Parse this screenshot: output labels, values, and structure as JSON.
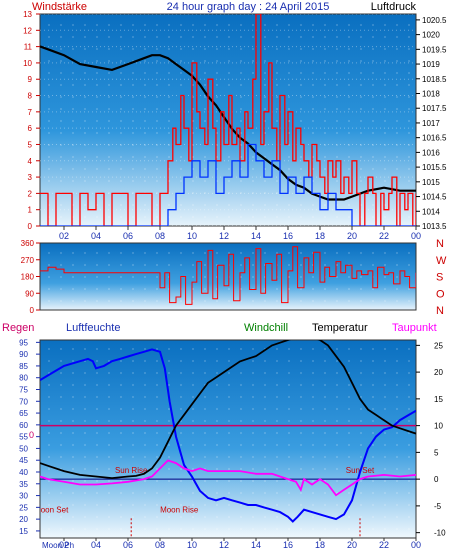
{
  "colors": {
    "wind_speed": "#ff0000",
    "wind_gust": "#ff0000",
    "wind_avg": "#0033ff",
    "pressure": "#000000",
    "direction": "#ff0000",
    "humidity": "#0000ff",
    "temperature": "#000000",
    "dewpoint": "#ff00ff",
    "windchill": "#008000",
    "rain": "#ff0000",
    "zero_line": "#cc0066",
    "freeze_line": "#000080",
    "night_shade": "#ffffff",
    "marker": "#cc0000"
  },
  "chart_data": [
    {
      "type": "line",
      "title": "24 hour graph day : 24 April 2015",
      "left_label": "Windstärke",
      "right_label": "Luftdruck",
      "left_ticks": [
        "0",
        "1",
        "2",
        "3",
        "4",
        "5",
        "6",
        "7",
        "8",
        "9",
        "10",
        "11",
        "12",
        "13"
      ],
      "right_ticks": [
        "1013.5",
        "1014",
        "1014.5",
        "1015",
        "1015.5",
        "1016",
        "1016.5",
        "1017",
        "1017.5",
        "1018",
        "1018.5",
        "1019",
        "1019.5",
        "1020",
        "1020.5"
      ],
      "x_ticks": [
        "02",
        "04",
        "06",
        "08",
        "10",
        "12",
        "14",
        "16",
        "18",
        "20",
        "22",
        "00"
      ],
      "ylim_left": [
        0,
        13
      ],
      "ylim_right": [
        1013.5,
        1020.7
      ],
      "xlim": [
        0.5,
        24
      ],
      "series": [
        {
          "key": "pressure",
          "axis": "right",
          "x": [
            0.5,
            1,
            2,
            3,
            4,
            5,
            6,
            7,
            7.5,
            8,
            8.5,
            9,
            9.5,
            10,
            10.5,
            11,
            11.5,
            12,
            12.5,
            13,
            13.5,
            14,
            14.5,
            15,
            15.5,
            16,
            16.5,
            17,
            17.5,
            18,
            18.5,
            19,
            19.5,
            20,
            20.5,
            21,
            22,
            23,
            24
          ],
          "values": [
            1019.6,
            1019.5,
            1019.3,
            1019.0,
            1018.9,
            1018.8,
            1019.0,
            1019.2,
            1019.3,
            1019.3,
            1019.2,
            1019.0,
            1018.8,
            1018.6,
            1018.3,
            1017.9,
            1017.6,
            1017.2,
            1016.8,
            1016.5,
            1016.3,
            1016.0,
            1015.8,
            1015.6,
            1015.4,
            1015.1,
            1014.9,
            1014.8,
            1014.6,
            1014.5,
            1014.4,
            1014.4,
            1014.4,
            1014.5,
            1014.6,
            1014.7,
            1014.8,
            1014.7,
            1014.7
          ]
        },
        {
          "key": "wind_gust",
          "axis": "left",
          "x": [
            0.5,
            1,
            1.5,
            2,
            2.5,
            3,
            3.5,
            4,
            4.5,
            5,
            5.5,
            6,
            6.5,
            7,
            7.5,
            8,
            8.3,
            8.5,
            8.8,
            9,
            9.3,
            9.5,
            9.8,
            10,
            10.3,
            10.5,
            10.8,
            11,
            11.3,
            11.5,
            11.8,
            12,
            12.3,
            12.5,
            12.8,
            13,
            13.3,
            13.5,
            13.8,
            14,
            14.3,
            14.5,
            14.8,
            15,
            15.3,
            15.5,
            15.8,
            16,
            16.3,
            16.5,
            16.8,
            17,
            17.3,
            17.5,
            17.8,
            18,
            18.3,
            18.5,
            18.8,
            19,
            19.3,
            19.5,
            19.8,
            20,
            20.3,
            20.5,
            20.8,
            21,
            21.3,
            21.5,
            21.8,
            22,
            22.3,
            22.5,
            22.8,
            23,
            23.3,
            23.5,
            23.8,
            24
          ],
          "values": [
            2,
            0,
            2,
            2,
            0,
            2,
            1,
            2,
            0,
            2,
            2,
            0,
            2,
            2,
            0,
            2,
            2,
            4,
            6,
            5,
            8,
            6,
            4,
            10,
            7,
            6,
            5,
            9,
            6,
            4,
            7,
            5,
            8,
            5,
            6,
            4,
            7,
            6,
            9,
            13,
            5,
            7,
            10,
            6,
            4,
            8,
            5,
            7,
            4,
            6,
            5,
            4,
            3,
            5,
            4,
            3,
            2,
            4,
            3,
            4,
            2,
            3,
            2,
            4,
            2,
            0,
            2,
            3,
            2,
            0,
            2,
            1,
            2,
            3,
            0,
            2,
            1,
            2,
            0,
            2
          ]
        },
        {
          "key": "wind_avg",
          "axis": "left",
          "x": [
            0.5,
            2,
            4,
            6,
            8,
            8.5,
            9,
            9.5,
            10,
            10.5,
            11,
            11.5,
            12,
            12.5,
            13,
            13.5,
            14,
            14.5,
            15,
            15.5,
            16,
            16.5,
            17,
            17.5,
            18,
            18.5,
            19,
            19.5,
            20,
            21,
            22,
            23,
            24
          ],
          "values": [
            0,
            0,
            0,
            0,
            0,
            1,
            2,
            3,
            4,
            3,
            4,
            2,
            3,
            4,
            3,
            5,
            4,
            3,
            4,
            2,
            3,
            2,
            3,
            2,
            1,
            2,
            1,
            1,
            0,
            0,
            0,
            0,
            0
          ]
        }
      ]
    },
    {
      "type": "scatter",
      "y_ticks": [
        "360",
        "270",
        "180",
        "90",
        "0"
      ],
      "compass": [
        "N",
        "W",
        "S",
        "O",
        "N"
      ],
      "ylim": [
        0,
        360
      ],
      "xlim": [
        0.5,
        24
      ],
      "series": [
        {
          "key": "direction",
          "x": [
            0.5,
            1,
            1.5,
            2,
            3,
            4,
            5,
            6,
            7,
            7.5,
            8,
            8.3,
            8.6,
            9,
            9.3,
            9.6,
            10,
            10.3,
            10.6,
            11,
            11.3,
            11.6,
            12,
            12.3,
            12.6,
            13,
            13.3,
            13.6,
            14,
            14.3,
            14.6,
            15,
            15.3,
            15.6,
            16,
            16.3,
            16.6,
            17,
            17.3,
            17.6,
            18,
            18.3,
            18.6,
            19,
            19.3,
            19.6,
            20,
            20.3,
            20.6,
            21,
            21.3,
            21.6,
            22,
            22.3,
            22.6,
            23,
            23.3,
            23.6,
            24
          ],
          "values": [
            210,
            230,
            220,
            200,
            200,
            200,
            200,
            200,
            200,
            200,
            120,
            200,
            40,
            70,
            180,
            30,
            150,
            260,
            90,
            320,
            60,
            240,
            130,
            300,
            50,
            200,
            280,
            110,
            330,
            90,
            250,
            160,
            300,
            40,
            210,
            340,
            120,
            280,
            200,
            310,
            150,
            230,
            180,
            260,
            200,
            240,
            170,
            210,
            190,
            210,
            120,
            230,
            190,
            200,
            140,
            210,
            180,
            120,
            200
          ]
        }
      ]
    },
    {
      "type": "line",
      "left_label": "Regen",
      "humidity_label": "Luftfeuchte",
      "windchill_label": "Windchill",
      "temperature_label": "Temperatur",
      "dewpoint_label": "Taupunkt",
      "zero_label": "0",
      "left_ticks": [
        "15",
        "20",
        "25",
        "30",
        "35",
        "40",
        "45",
        "50",
        "55",
        "60",
        "65",
        "70",
        "75",
        "80",
        "85",
        "90",
        "95"
      ],
      "right_ticks": [
        "-10",
        "-5",
        "0",
        "5",
        "10",
        "15",
        "20",
        "25"
      ],
      "x_ticks": [
        "02",
        "04",
        "06",
        "08",
        "10",
        "12",
        "14",
        "16",
        "18",
        "20",
        "22",
        "00"
      ],
      "ylim_left": [
        12,
        96
      ],
      "ylim_right": [
        -11,
        26
      ],
      "xlim": [
        0.5,
        24
      ],
      "sun_rise": {
        "label": "Sun Rise",
        "x": 6.2
      },
      "sun_set": {
        "label": "Sun Set",
        "x": 20.5
      },
      "moon_set": {
        "label": "Moon Set",
        "x": 1.2
      },
      "moon_rise": {
        "label": "Moon Rise",
        "x": 9.2
      },
      "moon_phase": {
        "label": "Moon Ph",
        "x": 0.7
      },
      "series": [
        {
          "key": "humidity",
          "axis": "left",
          "x": [
            0.5,
            1,
            1.5,
            2,
            2.5,
            3,
            3.5,
            3.8,
            4,
            4.5,
            5,
            5.5,
            6,
            6.5,
            7,
            7.5,
            8,
            8.3,
            8.6,
            9,
            9.5,
            10,
            10.5,
            11,
            11.5,
            12,
            12.5,
            13,
            13.5,
            14,
            14.5,
            15,
            15.5,
            16,
            16.3,
            16.6,
            17,
            17.5,
            18,
            18.5,
            19,
            19.5,
            20,
            20.5,
            21,
            21.5,
            22,
            22.5,
            23,
            23.5,
            24
          ],
          "values": [
            79,
            81,
            83,
            85,
            86,
            87,
            88,
            87,
            84,
            85,
            87,
            88,
            89,
            90,
            91,
            92,
            91,
            84,
            70,
            55,
            43,
            38,
            32,
            29,
            28,
            29,
            28,
            27,
            26,
            26,
            25,
            24,
            23,
            21,
            19,
            21,
            24,
            23,
            22,
            21,
            20,
            22,
            28,
            40,
            50,
            55,
            58,
            59,
            62,
            64,
            66
          ]
        },
        {
          "key": "temperature",
          "axis": "right",
          "x": [
            0.5,
            1,
            2,
            3,
            4,
            5,
            6,
            6.5,
            7,
            7.5,
            8,
            8.5,
            9,
            9.5,
            10,
            10.5,
            11,
            11.5,
            12,
            12.5,
            13,
            13.5,
            14,
            14.5,
            15,
            15.5,
            16,
            16.5,
            17,
            17.5,
            18,
            18.5,
            19,
            19.5,
            20,
            20.5,
            21,
            21.5,
            22,
            22.5,
            23,
            23.5,
            24
          ],
          "values": [
            3,
            2.5,
            1.5,
            0.8,
            0.5,
            0.2,
            0.5,
            0.6,
            1,
            2,
            4,
            7,
            10,
            12,
            14,
            16,
            18,
            19,
            20,
            21,
            22,
            22.5,
            23,
            24,
            25,
            25.5,
            26,
            26.5,
            26.5,
            26.5,
            26,
            25,
            23,
            21,
            18,
            15,
            13,
            12,
            11,
            10,
            9.5,
            9,
            8.5
          ]
        },
        {
          "key": "dewpoint",
          "axis": "right",
          "x": [
            0.5,
            1,
            2,
            3,
            4,
            5,
            6,
            7,
            7.5,
            8,
            8.5,
            9,
            9.5,
            10,
            10.5,
            11,
            12,
            13,
            14,
            15,
            15.5,
            16,
            16.5,
            16.8,
            17,
            17.5,
            18,
            18.5,
            19,
            19.5,
            20,
            20.5,
            21,
            22,
            23,
            24
          ],
          "values": [
            0.5,
            0,
            -0.5,
            -1,
            -1,
            -0.8,
            -0.5,
            0,
            0.5,
            2,
            3.5,
            3,
            2,
            1.5,
            2,
            1.5,
            1.5,
            1.5,
            1,
            1,
            0.5,
            0,
            -0.5,
            -2,
            0,
            -1,
            0,
            -1,
            -3,
            -2,
            -1,
            0,
            0.5,
            0.8,
            0.5,
            0.8
          ]
        }
      ]
    }
  ]
}
